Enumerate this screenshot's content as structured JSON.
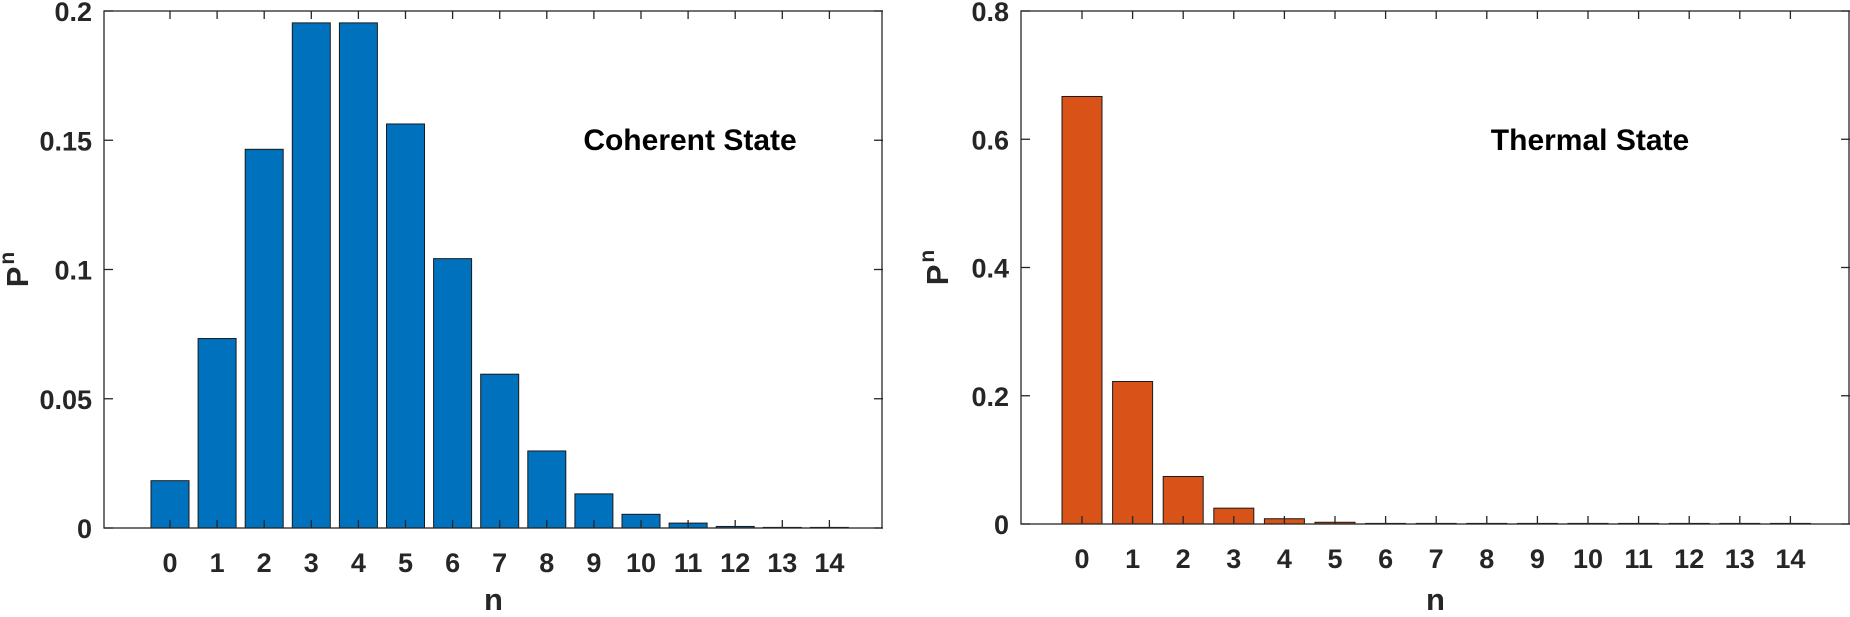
{
  "chart_data": [
    {
      "type": "bar",
      "categories": [
        "0",
        "1",
        "2",
        "3",
        "4",
        "5",
        "6",
        "7",
        "8",
        "9",
        "10",
        "11",
        "12",
        "13",
        "14"
      ],
      "values": [
        0.0183,
        0.0733,
        0.1465,
        0.1954,
        0.1954,
        0.1563,
        0.1042,
        0.0595,
        0.0298,
        0.0132,
        0.0053,
        0.0019,
        0.0006,
        0.0002,
        0.0001
      ],
      "xlabel": "n",
      "ylabel": "P",
      "ylabel_sub": "n",
      "ylim": [
        0,
        0.2
      ],
      "yticks": [
        "0",
        "0.05",
        "0.1",
        "0.15",
        "0.2"
      ],
      "annotation": "Coherent State",
      "color": "#0072BD",
      "grid": false
    },
    {
      "type": "bar",
      "categories": [
        "0",
        "1",
        "2",
        "3",
        "4",
        "5",
        "6",
        "7",
        "8",
        "9",
        "10",
        "11",
        "12",
        "13",
        "14"
      ],
      "values": [
        0.6667,
        0.2222,
        0.0741,
        0.0247,
        0.0082,
        0.0027,
        0.0009,
        0.0003,
        0.0001,
        3e-05,
        1e-05,
        0,
        0,
        0,
        0
      ],
      "xlabel": "n",
      "ylabel": "P",
      "ylabel_sub": "n",
      "ylim": [
        0,
        0.8
      ],
      "yticks": [
        "0",
        "0.2",
        "0.4",
        "0.6",
        "0.8"
      ],
      "annotation": "Thermal State",
      "color": "#D95319",
      "grid": false
    }
  ]
}
